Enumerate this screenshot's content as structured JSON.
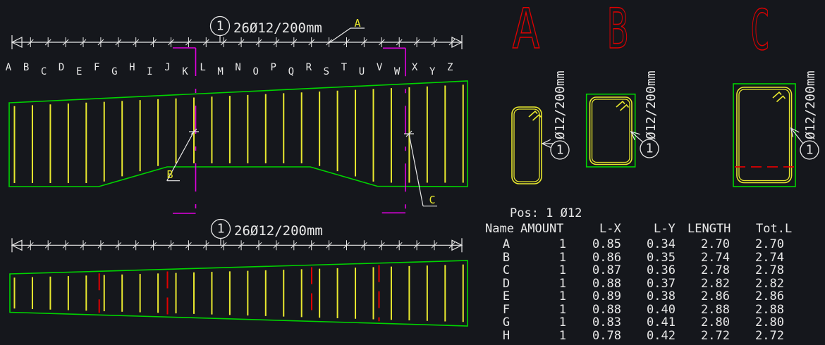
{
  "colors": {
    "background": "#15171c",
    "stroke": "#e8e8e8",
    "green": "#00d400",
    "yellow": "#e8e82e",
    "red": "#e00000",
    "magenta": "#e000e0"
  },
  "plan": {
    "grid_letters": [
      "A",
      "B",
      "C",
      "D",
      "E",
      "F",
      "G",
      "H",
      "I",
      "J",
      "K",
      "L",
      "M",
      "N",
      "O",
      "P",
      "Q",
      "R",
      "S",
      "T",
      "U",
      "V",
      "W",
      "X",
      "Y",
      "Z"
    ],
    "bar_count": 26,
    "dim_top": {
      "bubble": "1",
      "label": "26Ø12/200mm"
    },
    "dim_bottom": {
      "bubble": "1",
      "label": "26Ø12/200mm"
    },
    "detail_marker": "A",
    "section_marker_b": "B",
    "section_marker_c": "C"
  },
  "sections": [
    {
      "name": "A",
      "bubble": "1",
      "label": "Ø12/200mm"
    },
    {
      "name": "B",
      "bubble": "1",
      "label": "Ø12/200mm"
    },
    {
      "name": "C",
      "bubble": "1",
      "label": "Ø12/200mm"
    }
  ],
  "table": {
    "title": "Pos: 1 Ø12",
    "headers": [
      "Name",
      "AMOUNT",
      "L-X",
      "L-Y",
      "LENGTH",
      "Tot.L"
    ],
    "rows": [
      [
        "A",
        "1",
        "0.85",
        "0.34",
        "2.70",
        "2.70"
      ],
      [
        "B",
        "1",
        "0.86",
        "0.35",
        "2.74",
        "2.74"
      ],
      [
        "C",
        "1",
        "0.87",
        "0.36",
        "2.78",
        "2.78"
      ],
      [
        "D",
        "1",
        "0.88",
        "0.37",
        "2.82",
        "2.82"
      ],
      [
        "E",
        "1",
        "0.89",
        "0.38",
        "2.86",
        "2.86"
      ],
      [
        "F",
        "1",
        "0.88",
        "0.40",
        "2.88",
        "2.88"
      ],
      [
        "G",
        "1",
        "0.83",
        "0.41",
        "2.80",
        "2.80"
      ],
      [
        "H",
        "1",
        "0.78",
        "0.42",
        "2.72",
        "2.72"
      ]
    ]
  }
}
